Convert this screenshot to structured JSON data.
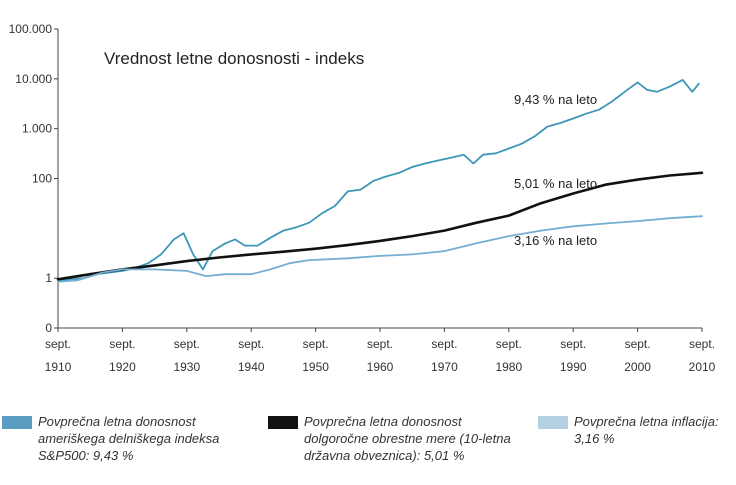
{
  "chart_data": {
    "type": "line",
    "title": "Vrednost letne donosnosti - indeks",
    "y_scale": "log",
    "ylim": [
      0.1,
      100000
    ],
    "y_ticks": [
      {
        "value": 0.1,
        "label": "0"
      },
      {
        "value": 1,
        "label": "1"
      },
      {
        "value": 100,
        "label": "100"
      },
      {
        "value": 1000,
        "label": "1.000"
      },
      {
        "value": 10000,
        "label": "10.000"
      },
      {
        "value": 100000,
        "label": "100.000"
      }
    ],
    "xlim": [
      1910,
      2010
    ],
    "x_ticks": [
      {
        "value": 1910,
        "top": "sept.",
        "bottom": "1910"
      },
      {
        "value": 1920,
        "top": "sept.",
        "bottom": "1920"
      },
      {
        "value": 1930,
        "top": "sept.",
        "bottom": "1930"
      },
      {
        "value": 1940,
        "top": "sept.",
        "bottom": "1940"
      },
      {
        "value": 1950,
        "top": "sept.",
        "bottom": "1950"
      },
      {
        "value": 1960,
        "top": "sept.",
        "bottom": "1960"
      },
      {
        "value": 1970,
        "top": "sept.",
        "bottom": "1970"
      },
      {
        "value": 1980,
        "top": "sept.",
        "bottom": "1980"
      },
      {
        "value": 1990,
        "top": "sept.",
        "bottom": "1990"
      },
      {
        "value": 2000,
        "top": "sept.",
        "bottom": "2000"
      },
      {
        "value": 2010,
        "top": "sept.",
        "bottom": "2010"
      }
    ],
    "series": [
      {
        "name": "Povprečna letna donosnost ameriškega delniškega indeksa S&P500: 9,43 %",
        "color": "#3d97b8",
        "x": [
          1910,
          1912,
          1914,
          1916,
          1918,
          1920,
          1922,
          1924,
          1926,
          1928,
          1929.5,
          1931,
          1932.5,
          1934,
          1936,
          1937.5,
          1939,
          1941,
          1943,
          1945,
          1947,
          1949,
          1951,
          1953,
          1955,
          1957,
          1959,
          1961,
          1963,
          1965,
          1967,
          1969,
          1971,
          1973,
          1974.5,
          1976,
          1978,
          1980,
          1982,
          1984,
          1986,
          1988,
          1990,
          1992,
          1994,
          1996,
          1998,
          2000,
          2001.5,
          2003,
          2005,
          2007,
          2008.5,
          2009.5
        ],
        "values": [
          0.9,
          0.95,
          1.0,
          1.2,
          1.3,
          1.4,
          1.6,
          2.0,
          3.0,
          6.0,
          8.0,
          3.0,
          1.5,
          3.5,
          5.0,
          6.0,
          4.5,
          4.5,
          6.5,
          9.0,
          10.5,
          13.0,
          20.0,
          28.0,
          55.0,
          60.0,
          90.0,
          110.0,
          130.0,
          170.0,
          200.0,
          230.0,
          260.0,
          300.0,
          200.0,
          300.0,
          320.0,
          400.0,
          500.0,
          700.0,
          1100.0,
          1300.0,
          1600.0,
          2000.0,
          2400.0,
          3500.0,
          5500.0,
          8500.0,
          6000.0,
          5500.0,
          7000.0,
          9500.0,
          5500.0,
          8000.0
        ]
      },
      {
        "name": "Povprečna letna donosnost dolgoročne obrestne mere (10-letna državna obveznica): 5,01 %",
        "color": "#111111",
        "x": [
          1910,
          1915,
          1920,
          1925,
          1930,
          1935,
          1940,
          1945,
          1950,
          1955,
          1960,
          1965,
          1970,
          1975,
          1980,
          1985,
          1990,
          1995,
          2000,
          2005,
          2010
        ],
        "values": [
          0.95,
          1.2,
          1.5,
          1.8,
          2.2,
          2.6,
          3.0,
          3.4,
          3.9,
          4.6,
          5.6,
          7.0,
          9.0,
          13.0,
          18.0,
          32.0,
          50.0,
          75.0,
          95.0,
          115.0,
          130.0
        ]
      },
      {
        "name": "Povprečna letna inflacija: 3,16 %",
        "color": "#74aed2",
        "x": [
          1910,
          1913,
          1917,
          1920,
          1925,
          1930,
          1933,
          1936,
          1940,
          1943,
          1946,
          1949,
          1955,
          1960,
          1965,
          1970,
          1975,
          1980,
          1985,
          1990,
          1995,
          2000,
          2005,
          2010
        ],
        "values": [
          0.85,
          0.9,
          1.3,
          1.5,
          1.5,
          1.4,
          1.1,
          1.2,
          1.2,
          1.5,
          2.0,
          2.3,
          2.5,
          2.8,
          3.0,
          3.5,
          5.0,
          7.0,
          9.0,
          11.0,
          12.5,
          14.0,
          16.0,
          17.5
        ]
      }
    ],
    "annotations": [
      {
        "text": "9,43 % na leto",
        "series": 0
      },
      {
        "text": "5,01 % na leto",
        "series": 1
      },
      {
        "text": "3,16 % na leto",
        "series": 2
      }
    ]
  },
  "legend": [
    {
      "color": "#5b9cc2",
      "line1": "Povprečna letna donosnost",
      "line2": "ameriškega delniškega indeksa",
      "line3": "S&P500: 9,43 %"
    },
    {
      "color": "#111111",
      "line1": "Povprečna letna donosnost",
      "line2": "dolgoročne obrestne mere (10-letna",
      "line3": "državna obveznica): 5,01 %"
    },
    {
      "color": "#b5d1e3",
      "line1": "Povprečna letna inflacija:",
      "line2": "3,16 %",
      "line3": ""
    }
  ]
}
